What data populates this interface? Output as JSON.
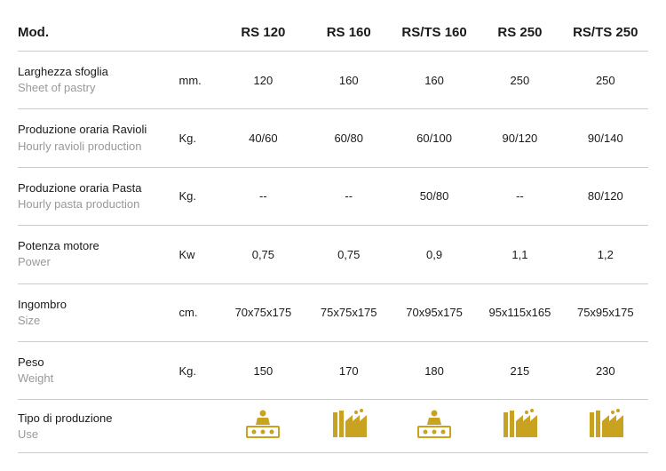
{
  "header": {
    "mod": "Mod.",
    "models": [
      "RS 120",
      "RS 160",
      "RS/TS 160",
      "RS 250",
      "RS/TS 250"
    ]
  },
  "rows": [
    {
      "label_it": "Larghezza sfoglia",
      "label_en": "Sheet of pastry",
      "unit": "mm.",
      "values": [
        "120",
        "160",
        "160",
        "250",
        "250"
      ]
    },
    {
      "label_it": "Produzione oraria Ravioli",
      "label_en": "Hourly ravioli production",
      "unit": "Kg.",
      "values": [
        "40/60",
        "60/80",
        "60/100",
        "90/120",
        "90/140"
      ]
    },
    {
      "label_it": "Produzione oraria Pasta",
      "label_en": "Hourly pasta production",
      "unit": "Kg.",
      "values": [
        "--",
        "--",
        "50/80",
        "--",
        "80/120"
      ]
    },
    {
      "label_it": "Potenza motore",
      "label_en": "Power",
      "unit": "Kw",
      "values": [
        "0,75",
        "0,75",
        "0,9",
        "1,1",
        "1,2"
      ]
    },
    {
      "label_it": "Ingombro",
      "label_en": "Size",
      "unit": "cm.",
      "values": [
        "70x75x175",
        "75x75x175",
        "70x95x175",
        "95x115x165",
        "75x95x175"
      ]
    },
    {
      "label_it": "Peso",
      "label_en": "Weight",
      "unit": "Kg.",
      "values": [
        "150",
        "170",
        "180",
        "215",
        "230"
      ]
    }
  ],
  "use_row": {
    "label_it": "Tipo di produzione",
    "label_en": "Use",
    "icons": [
      "artisan",
      "industrial",
      "artisan",
      "industrial",
      "industrial"
    ]
  },
  "colors": {
    "icon": "#c9a21f",
    "border": "#cccccc",
    "text": "#1a1a1a",
    "subtext": "#999999"
  }
}
